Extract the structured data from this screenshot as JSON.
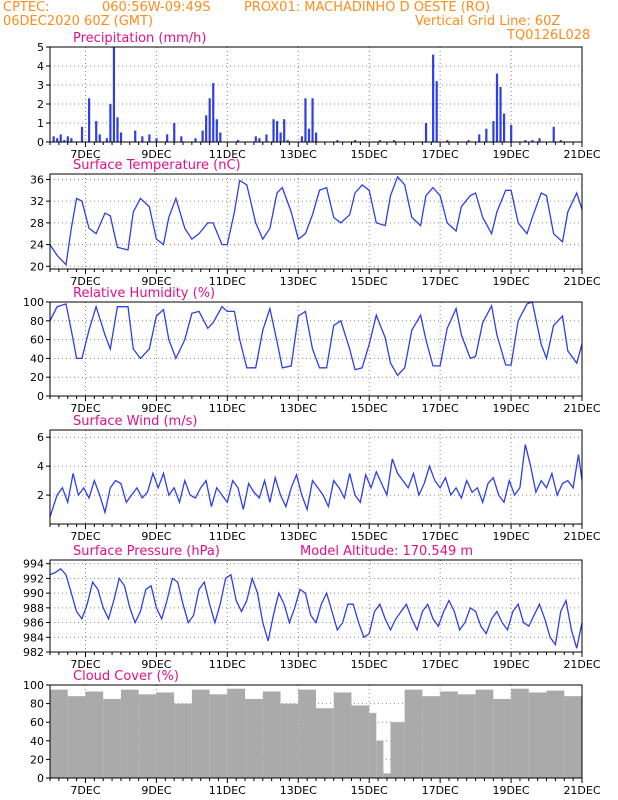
{
  "header": {
    "source": "CPTEC:",
    "coords": "060:56W-09:49S",
    "location": "PROX01: MACHADINHO D OESTE (RO)",
    "run": "06DEC2020 60Z (GMT)",
    "vgrid": "Vertical Grid Line: 60Z",
    "grid_code": "TQ0126L028"
  },
  "colors": {
    "header": "#ff8c1a",
    "title": "#e0108c",
    "series": "#2f3fe8",
    "cloud": "#aaaaaa",
    "grid": "#888888"
  },
  "x_ticks": [
    "7DEC",
    "9DEC",
    "11DEC",
    "13DEC",
    "15DEC",
    "17DEC",
    "19DEC",
    "21DEC"
  ],
  "chart_data": [
    {
      "type": "bar",
      "title": "Precipitation (mm/h)",
      "x_range_days": [
        6.0,
        21.0
      ],
      "ylim": [
        0,
        5
      ],
      "yticks": [
        0,
        1,
        2,
        3,
        4,
        5
      ],
      "x": [
        6.1,
        6.2,
        6.3,
        6.4,
        6.5,
        6.6,
        6.9,
        7.1,
        7.3,
        7.4,
        7.6,
        7.7,
        7.8,
        7.9,
        8.0,
        8.4,
        8.6,
        8.8,
        9.0,
        9.3,
        9.5,
        9.7,
        10.1,
        10.3,
        10.4,
        10.5,
        10.6,
        10.7,
        10.8,
        11.3,
        11.8,
        11.9,
        12.1,
        12.3,
        12.4,
        12.5,
        12.6,
        12.7,
        13.1,
        13.2,
        13.3,
        13.4,
        13.5,
        14.1,
        14.6,
        15.3,
        15.7,
        16.6,
        16.8,
        16.9,
        17.2,
        17.8,
        18.1,
        18.3,
        18.5,
        18.6,
        18.7,
        18.8,
        19.0,
        19.4,
        19.6,
        19.8,
        20.2,
        20.4
      ],
      "values": [
        0.3,
        0.2,
        0.4,
        0.1,
        0.3,
        0.2,
        0.8,
        2.3,
        1.1,
        0.4,
        0.2,
        2.0,
        5.0,
        1.3,
        0.5,
        0.6,
        0.3,
        0.4,
        0.2,
        0.4,
        1.0,
        0.3,
        0.2,
        0.6,
        1.4,
        2.3,
        3.1,
        1.2,
        0.5,
        0.1,
        0.3,
        0.2,
        0.4,
        1.2,
        1.1,
        0.5,
        1.2,
        0.1,
        0.3,
        2.3,
        0.7,
        2.3,
        0.5,
        0.1,
        0.1,
        0.1,
        0.1,
        1.0,
        4.6,
        3.2,
        0.1,
        0.1,
        0.4,
        0.7,
        1.1,
        3.6,
        2.9,
        1.5,
        0.9,
        0.1,
        0.1,
        0.2,
        0.8,
        0.1
      ]
    },
    {
      "type": "line",
      "title": "Surface Temperature (nC)",
      "x_range_days": [
        6.0,
        21.0
      ],
      "ylim": [
        19.5,
        37
      ],
      "yticks": [
        20,
        24,
        28,
        32,
        36
      ],
      "x": [
        6.0,
        6.2,
        6.45,
        6.6,
        6.75,
        6.9,
        7.1,
        7.3,
        7.55,
        7.7,
        7.9,
        8.2,
        8.35,
        8.55,
        8.8,
        9.0,
        9.2,
        9.35,
        9.55,
        9.8,
        10.0,
        10.2,
        10.45,
        10.6,
        10.85,
        11.0,
        11.2,
        11.35,
        11.55,
        11.8,
        12.0,
        12.2,
        12.4,
        12.55,
        12.8,
        13.0,
        13.2,
        13.4,
        13.6,
        13.8,
        14.0,
        14.2,
        14.45,
        14.6,
        14.8,
        15.0,
        15.2,
        15.45,
        15.6,
        15.8,
        16.0,
        16.2,
        16.45,
        16.6,
        16.8,
        17.0,
        17.2,
        17.45,
        17.6,
        17.85,
        18.0,
        18.2,
        18.45,
        18.6,
        18.85,
        19.0,
        19.2,
        19.45,
        19.6,
        19.85,
        20.0,
        20.2,
        20.45,
        20.6,
        20.85,
        21.0
      ],
      "values": [
        24,
        22,
        20.3,
        27,
        32.5,
        32,
        27,
        26,
        29.8,
        29.3,
        23.5,
        23,
        30,
        32.5,
        31,
        25,
        24,
        29,
        32.5,
        27,
        25,
        26,
        28,
        28,
        24,
        24,
        30,
        35.8,
        35,
        28,
        25,
        27,
        33.5,
        34.5,
        30,
        25,
        26,
        29.5,
        34,
        34.5,
        29,
        28,
        29.5,
        33.5,
        35,
        34,
        28,
        27.5,
        33,
        36.5,
        35,
        29,
        27.5,
        33,
        34.5,
        33,
        28,
        26.5,
        31,
        33,
        33.5,
        29,
        26,
        30,
        34,
        34,
        28,
        26,
        29,
        33.5,
        33,
        26,
        24.5,
        30,
        33.5,
        30.5
      ]
    },
    {
      "type": "line",
      "title": "Relative Humidity (%)",
      "x_range_days": [
        6.0,
        21.0
      ],
      "ylim": [
        0,
        100
      ],
      "yticks": [
        0,
        20,
        40,
        60,
        80,
        100
      ],
      "x": [
        6.0,
        6.2,
        6.45,
        6.6,
        6.75,
        6.9,
        7.1,
        7.3,
        7.55,
        7.7,
        7.9,
        8.2,
        8.35,
        8.55,
        8.8,
        9.0,
        9.2,
        9.35,
        9.55,
        9.8,
        10.0,
        10.2,
        10.45,
        10.6,
        10.85,
        11.0,
        11.2,
        11.35,
        11.55,
        11.8,
        12.0,
        12.2,
        12.4,
        12.55,
        12.8,
        13.0,
        13.2,
        13.4,
        13.6,
        13.8,
        14.0,
        14.2,
        14.45,
        14.6,
        14.8,
        15.0,
        15.2,
        15.45,
        15.6,
        15.8,
        16.0,
        16.2,
        16.45,
        16.6,
        16.8,
        17.0,
        17.2,
        17.45,
        17.6,
        17.85,
        18.0,
        18.2,
        18.45,
        18.6,
        18.85,
        19.0,
        19.2,
        19.45,
        19.6,
        19.85,
        20.0,
        20.2,
        20.45,
        20.6,
        20.85,
        21.0
      ],
      "values": [
        80,
        95,
        98,
        70,
        40,
        40,
        70,
        95,
        65,
        50,
        95,
        95,
        50,
        40,
        50,
        85,
        92,
        60,
        40,
        60,
        88,
        90,
        72,
        78,
        95,
        90,
        90,
        60,
        30,
        30,
        70,
        93,
        58,
        30,
        32,
        85,
        90,
        50,
        30,
        30,
        75,
        80,
        50,
        28,
        30,
        55,
        86,
        62,
        35,
        22,
        30,
        70,
        86,
        60,
        32,
        32,
        72,
        93,
        65,
        40,
        42,
        78,
        96,
        65,
        33,
        33,
        80,
        98,
        100,
        55,
        40,
        75,
        85,
        48,
        35,
        55
      ]
    },
    {
      "type": "line",
      "title": "Surface Wind (m/s)",
      "x_range_days": [
        6.0,
        21.0
      ],
      "ylim": [
        0,
        6.5
      ],
      "yticks": [
        2,
        4,
        6
      ],
      "x": [
        6.0,
        6.2,
        6.35,
        6.5,
        6.65,
        6.8,
        6.95,
        7.1,
        7.25,
        7.4,
        7.55,
        7.7,
        7.85,
        8.0,
        8.15,
        8.3,
        8.45,
        8.6,
        8.75,
        8.9,
        9.05,
        9.2,
        9.35,
        9.5,
        9.65,
        9.8,
        9.95,
        10.1,
        10.25,
        10.4,
        10.55,
        10.7,
        10.85,
        11.0,
        11.15,
        11.3,
        11.45,
        11.6,
        11.75,
        11.9,
        12.05,
        12.2,
        12.35,
        12.5,
        12.65,
        12.8,
        12.95,
        13.1,
        13.25,
        13.4,
        13.55,
        13.7,
        13.85,
        14.0,
        14.15,
        14.3,
        14.45,
        14.6,
        14.75,
        14.9,
        15.05,
        15.2,
        15.35,
        15.5,
        15.65,
        15.8,
        15.95,
        16.1,
        16.25,
        16.4,
        16.55,
        16.7,
        16.85,
        17.0,
        17.15,
        17.3,
        17.45,
        17.6,
        17.75,
        17.9,
        18.05,
        18.2,
        18.35,
        18.5,
        18.65,
        18.8,
        18.95,
        19.1,
        19.25,
        19.4,
        19.55,
        19.7,
        19.85,
        20.0,
        20.15,
        20.3,
        20.45,
        20.6,
        20.75,
        20.9,
        21.0
      ],
      "values": [
        0.5,
        2.0,
        2.5,
        1.5,
        3.5,
        2.0,
        2.5,
        1.8,
        3.0,
        2.0,
        0.8,
        2.5,
        3.0,
        2.8,
        1.5,
        2.0,
        2.5,
        1.8,
        2.2,
        3.5,
        2.5,
        3.5,
        2.0,
        2.5,
        1.5,
        3.0,
        2.0,
        1.8,
        2.5,
        3.0,
        1.2,
        2.5,
        2.0,
        1.5,
        3.0,
        2.5,
        1.0,
        2.8,
        2.2,
        1.8,
        3.0,
        1.5,
        3.2,
        2.0,
        1.2,
        2.5,
        3.4,
        2.0,
        1.0,
        3.0,
        2.5,
        2.0,
        1.2,
        3.0,
        2.5,
        1.8,
        3.5,
        2.0,
        1.5,
        3.4,
        2.5,
        3.6,
        2.8,
        2.0,
        4.5,
        3.5,
        3.0,
        2.5,
        3.5,
        2.0,
        2.8,
        4.0,
        3.0,
        2.5,
        3.2,
        2.0,
        2.5,
        1.8,
        3.0,
        2.2,
        2.5,
        1.5,
        2.8,
        3.2,
        2.0,
        1.5,
        3.0,
        2.0,
        2.5,
        5.5,
        4.0,
        2.2,
        3.0,
        2.5,
        3.5,
        2.0,
        2.8,
        3.0,
        2.5,
        4.8,
        3.0
      ]
    },
    {
      "type": "line",
      "title": "Surface Pressure (hPa)",
      "annotation": "Model Altitude: 170.549 m",
      "x_range_days": [
        6.0,
        21.0
      ],
      "ylim": [
        982,
        994.5
      ],
      "yticks": [
        982,
        984,
        986,
        988,
        990,
        992,
        994
      ],
      "x": [
        6.0,
        6.15,
        6.3,
        6.45,
        6.6,
        6.75,
        6.9,
        7.05,
        7.2,
        7.35,
        7.5,
        7.65,
        7.8,
        7.95,
        8.1,
        8.25,
        8.4,
        8.55,
        8.7,
        8.85,
        9.0,
        9.15,
        9.3,
        9.45,
        9.6,
        9.75,
        9.9,
        10.05,
        10.2,
        10.35,
        10.5,
        10.65,
        10.8,
        10.95,
        11.1,
        11.25,
        11.4,
        11.55,
        11.7,
        11.85,
        12.0,
        12.15,
        12.3,
        12.45,
        12.6,
        12.75,
        12.9,
        13.05,
        13.2,
        13.35,
        13.5,
        13.65,
        13.8,
        13.95,
        14.1,
        14.25,
        14.4,
        14.55,
        14.7,
        14.85,
        15.0,
        15.15,
        15.3,
        15.45,
        15.6,
        15.75,
        15.9,
        16.05,
        16.2,
        16.35,
        16.5,
        16.65,
        16.8,
        16.95,
        17.1,
        17.25,
        17.4,
        17.55,
        17.7,
        17.85,
        18.0,
        18.15,
        18.3,
        18.45,
        18.6,
        18.75,
        18.9,
        19.05,
        19.2,
        19.35,
        19.5,
        19.65,
        19.8,
        19.95,
        20.1,
        20.25,
        20.4,
        20.55,
        20.7,
        20.85,
        21.0
      ],
      "values": [
        992.5,
        992.8,
        993.3,
        992.5,
        990,
        987.5,
        986.5,
        988.5,
        991.5,
        990.5,
        988,
        986.5,
        989,
        992,
        991,
        988,
        986,
        987.5,
        990.5,
        991,
        988,
        986.5,
        989,
        992,
        991.5,
        988.5,
        986,
        987,
        990.5,
        991.5,
        988.5,
        986,
        988.5,
        992,
        992.5,
        989,
        987.5,
        989,
        992,
        990,
        986,
        983.5,
        987,
        990,
        988.5,
        986,
        988,
        990.5,
        990,
        987,
        986,
        988.5,
        990,
        987.5,
        985,
        986,
        988.5,
        988.5,
        986,
        984,
        984.5,
        987.5,
        988.5,
        986.5,
        985,
        986.5,
        987.5,
        988.5,
        986.5,
        985,
        987.5,
        988.5,
        986.5,
        985.5,
        987.5,
        989,
        987.5,
        985,
        986,
        988,
        987.5,
        985.5,
        984.5,
        986.5,
        987.5,
        986,
        985,
        987.5,
        988.5,
        986,
        985.5,
        987,
        988.5,
        986.5,
        984,
        983,
        987.5,
        989,
        985,
        982.5,
        986
      ]
    },
    {
      "type": "area",
      "title": "Cloud Cover (%)",
      "x_range_days": [
        6.0,
        21.0
      ],
      "ylim": [
        0,
        100
      ],
      "yticks": [
        0,
        20,
        40,
        60,
        80,
        100
      ],
      "x": [
        6.0,
        6.5,
        7.0,
        7.5,
        8.0,
        8.5,
        9.0,
        9.5,
        10.0,
        10.5,
        11.0,
        11.5,
        12.0,
        12.5,
        13.0,
        13.5,
        14.0,
        14.5,
        15.0,
        15.2,
        15.4,
        15.6,
        16.0,
        16.5,
        17.0,
        17.5,
        18.0,
        18.5,
        19.0,
        19.5,
        20.0,
        20.5,
        21.0
      ],
      "values": [
        95,
        88,
        93,
        85,
        95,
        90,
        92,
        80,
        95,
        90,
        96,
        85,
        93,
        80,
        95,
        75,
        92,
        78,
        70,
        40,
        5,
        60,
        95,
        88,
        93,
        90,
        95,
        85,
        96,
        92,
        94,
        88,
        95
      ]
    }
  ]
}
